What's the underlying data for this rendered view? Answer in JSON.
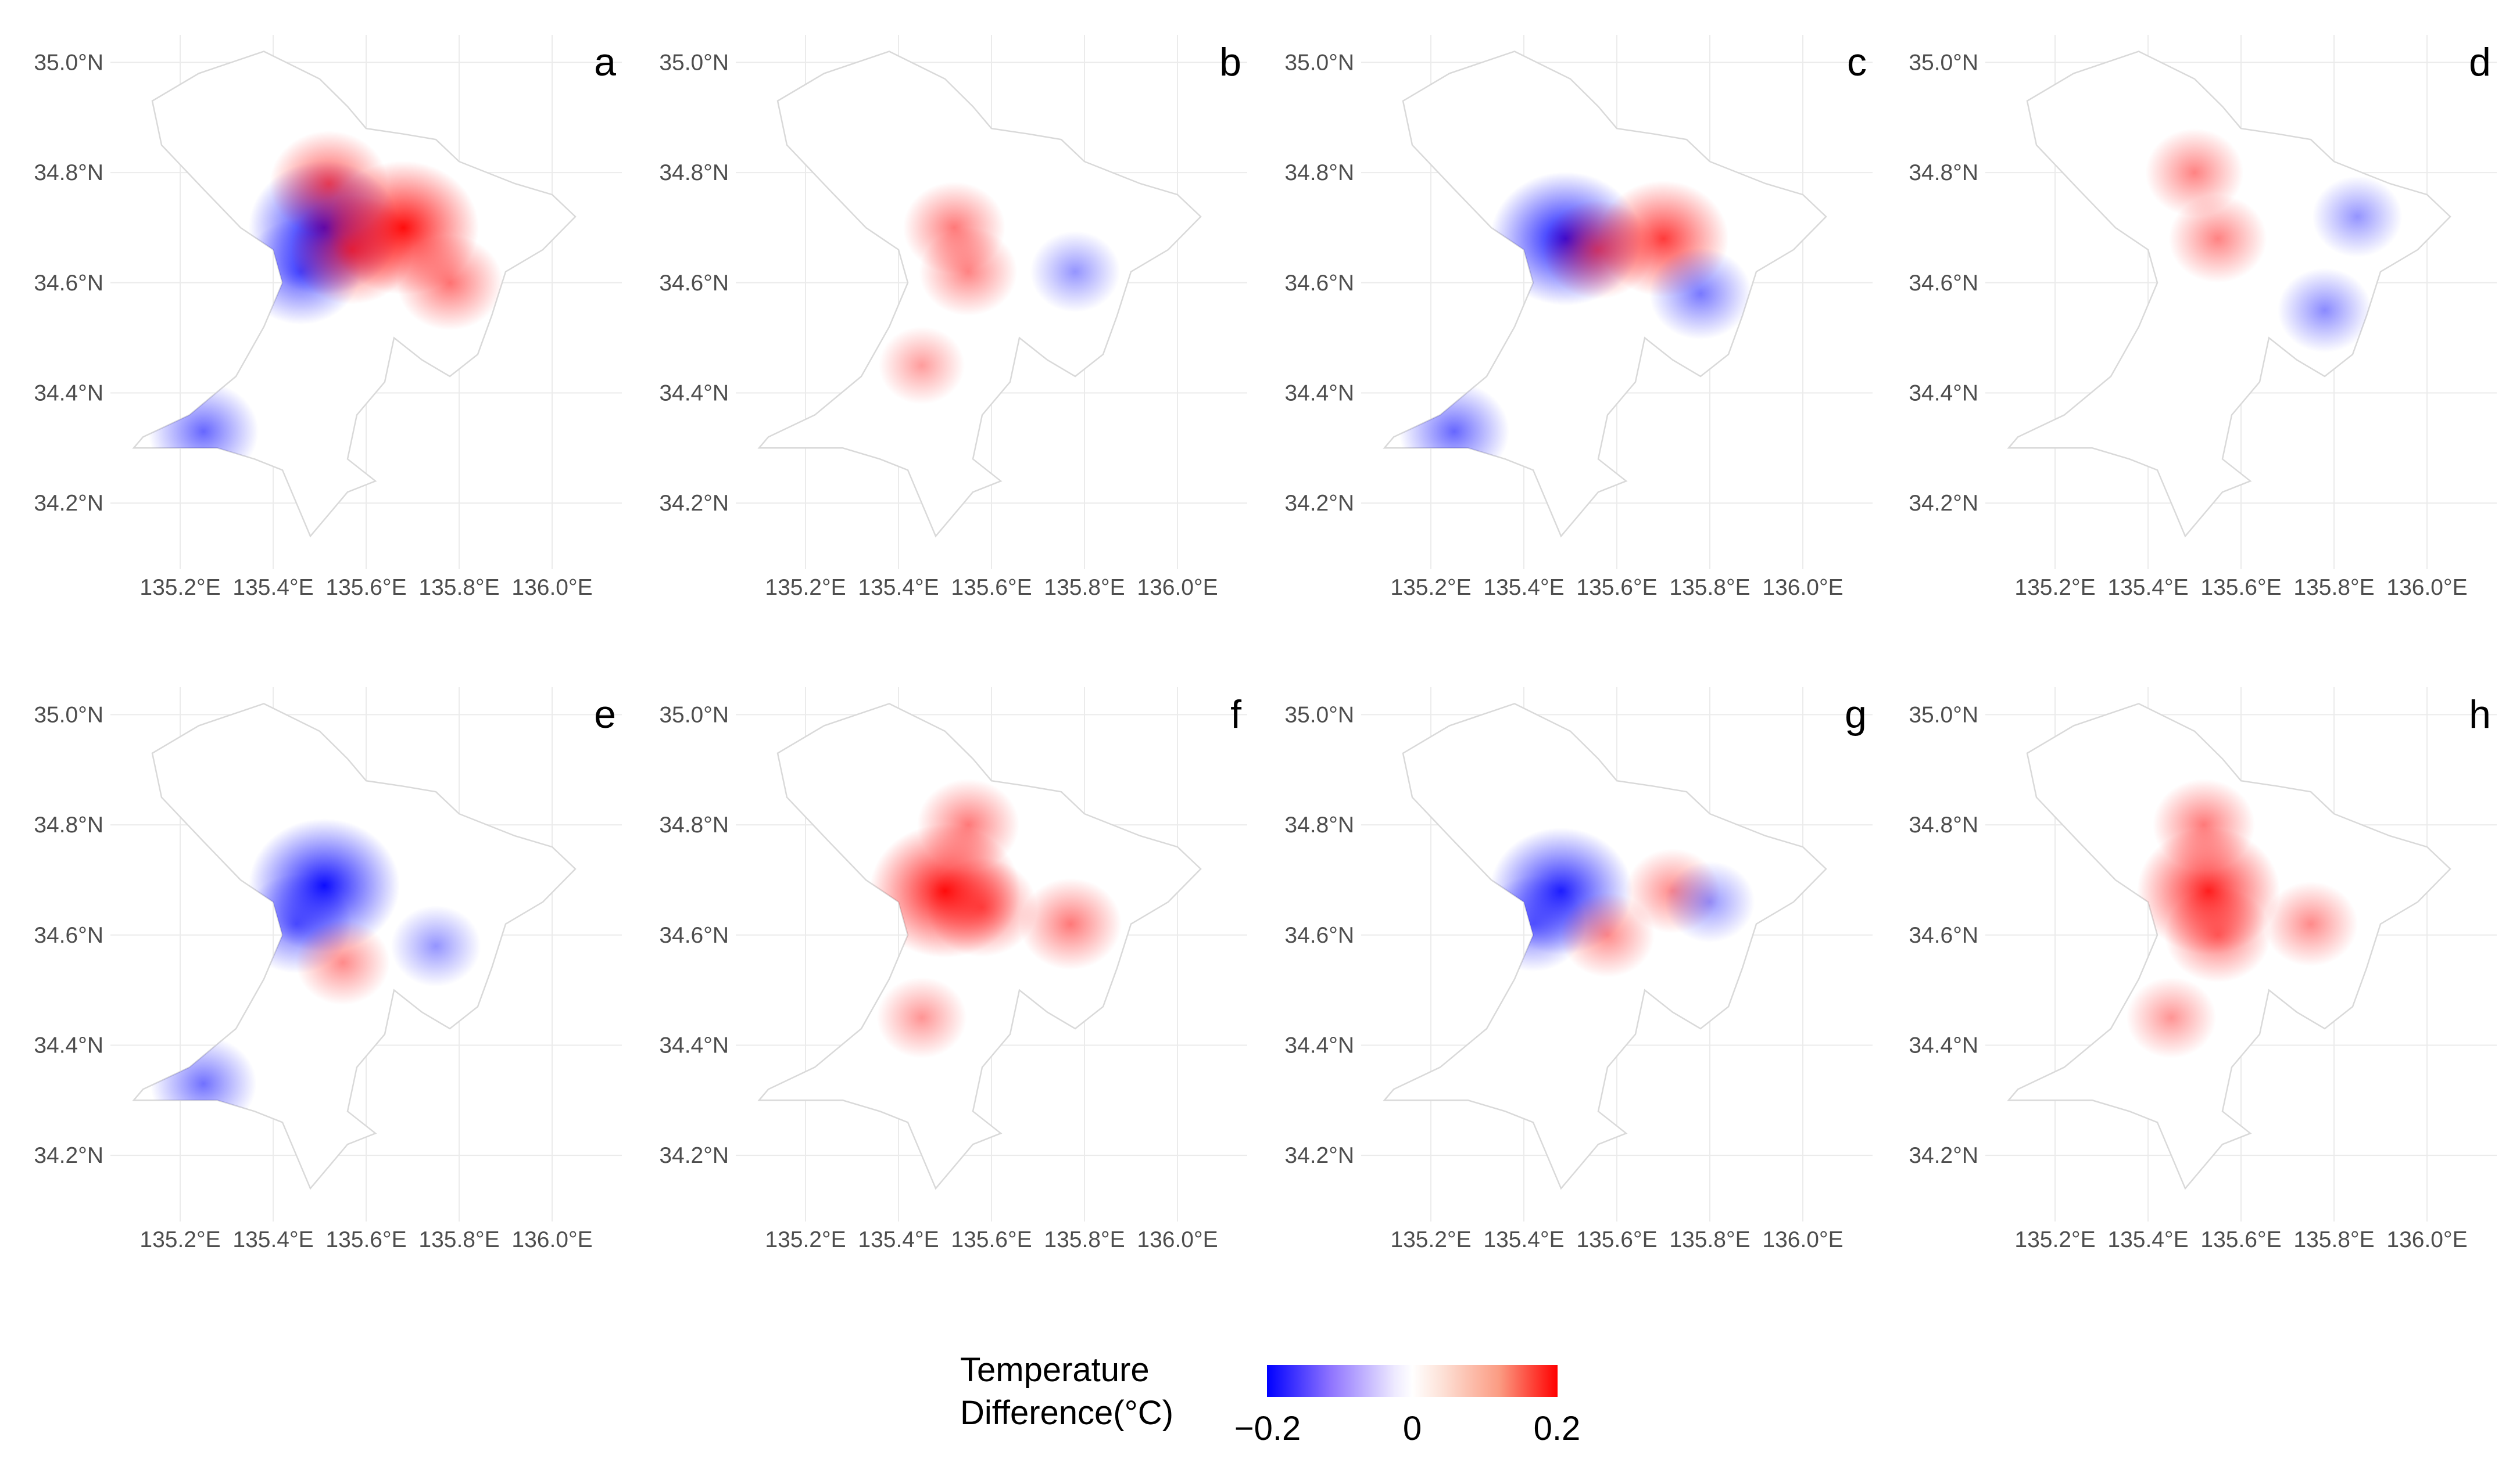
{
  "colors": {
    "negative": "#0000ff",
    "neutral": "#ffffff",
    "positive": "#ff0000",
    "outline": "#d9d9d9",
    "grid": "#ebebeb"
  },
  "map_data": {
    "type": "heatmap",
    "x_ticks": [
      "135.2°E",
      "135.4°E",
      "135.6°E",
      "135.8°E",
      "136.0°E"
    ],
    "y_ticks": [
      "35.0°N",
      "34.8°N",
      "34.6°N",
      "34.4°N",
      "34.2°N"
    ],
    "lon_range": [
      135.05,
      136.15
    ],
    "lat_range": [
      34.08,
      35.05
    ],
    "panels": [
      {
        "label": "a",
        "hotspots": [
          {
            "lon": 135.51,
            "lat": 34.7,
            "v": -0.2
          },
          {
            "lon": 135.46,
            "lat": 34.62,
            "v": -0.12
          },
          {
            "lon": 135.57,
            "lat": 34.66,
            "v": 0.13
          },
          {
            "lon": 135.52,
            "lat": 34.78,
            "v": 0.12
          },
          {
            "lon": 135.68,
            "lat": 34.7,
            "v": 0.2
          },
          {
            "lon": 135.78,
            "lat": 34.6,
            "v": 0.09
          },
          {
            "lon": 135.25,
            "lat": 34.33,
            "v": -0.1
          }
        ]
      },
      {
        "label": "b",
        "hotspots": [
          {
            "lon": 135.52,
            "lat": 34.7,
            "v": 0.08
          },
          {
            "lon": 135.55,
            "lat": 34.62,
            "v": 0.07
          },
          {
            "lon": 135.78,
            "lat": 34.62,
            "v": -0.05
          },
          {
            "lon": 135.45,
            "lat": 34.45,
            "v": 0.04
          }
        ]
      },
      {
        "label": "c",
        "hotspots": [
          {
            "lon": 135.49,
            "lat": 34.68,
            "v": -0.2
          },
          {
            "lon": 135.56,
            "lat": 34.66,
            "v": 0.1
          },
          {
            "lon": 135.7,
            "lat": 34.68,
            "v": 0.15
          },
          {
            "lon": 135.78,
            "lat": 34.58,
            "v": -0.08
          },
          {
            "lon": 135.25,
            "lat": 34.33,
            "v": -0.1
          }
        ]
      },
      {
        "label": "d",
        "hotspots": [
          {
            "lon": 135.55,
            "lat": 34.68,
            "v": 0.07
          },
          {
            "lon": 135.5,
            "lat": 34.8,
            "v": 0.07
          },
          {
            "lon": 135.78,
            "lat": 34.55,
            "v": -0.06
          },
          {
            "lon": 135.85,
            "lat": 34.72,
            "v": -0.05
          }
        ]
      },
      {
        "label": "e",
        "hotspots": [
          {
            "lon": 135.51,
            "lat": 34.69,
            "v": -0.2
          },
          {
            "lon": 135.45,
            "lat": 34.62,
            "v": -0.1
          },
          {
            "lon": 135.55,
            "lat": 34.55,
            "v": 0.06
          },
          {
            "lon": 135.75,
            "lat": 34.58,
            "v": -0.05
          },
          {
            "lon": 135.25,
            "lat": 34.33,
            "v": -0.09
          }
        ]
      },
      {
        "label": "f",
        "hotspots": [
          {
            "lon": 135.5,
            "lat": 34.68,
            "v": 0.2
          },
          {
            "lon": 135.58,
            "lat": 34.65,
            "v": 0.1
          },
          {
            "lon": 135.55,
            "lat": 34.8,
            "v": 0.08
          },
          {
            "lon": 135.77,
            "lat": 34.62,
            "v": 0.08
          },
          {
            "lon": 135.45,
            "lat": 34.45,
            "v": 0.05
          }
        ]
      },
      {
        "label": "g",
        "hotspots": [
          {
            "lon": 135.48,
            "lat": 34.68,
            "v": -0.18
          },
          {
            "lon": 135.42,
            "lat": 34.62,
            "v": -0.09
          },
          {
            "lon": 135.58,
            "lat": 34.6,
            "v": 0.06
          },
          {
            "lon": 135.72,
            "lat": 34.68,
            "v": 0.06
          },
          {
            "lon": 135.8,
            "lat": 34.66,
            "v": -0.05
          }
        ]
      },
      {
        "label": "h",
        "hotspots": [
          {
            "lon": 135.53,
            "lat": 34.68,
            "v": 0.18
          },
          {
            "lon": 135.55,
            "lat": 34.6,
            "v": 0.09
          },
          {
            "lon": 135.52,
            "lat": 34.8,
            "v": 0.08
          },
          {
            "lon": 135.75,
            "lat": 34.62,
            "v": 0.06
          },
          {
            "lon": 135.45,
            "lat": 34.45,
            "v": 0.05
          }
        ]
      }
    ]
  },
  "legend": {
    "title_line1": "Temperature",
    "title_line2": "Difference(°C)",
    "min_label": "−0.2",
    "mid_label": "0",
    "max_label": "0.2",
    "range": [
      -0.2,
      0.2
    ]
  }
}
